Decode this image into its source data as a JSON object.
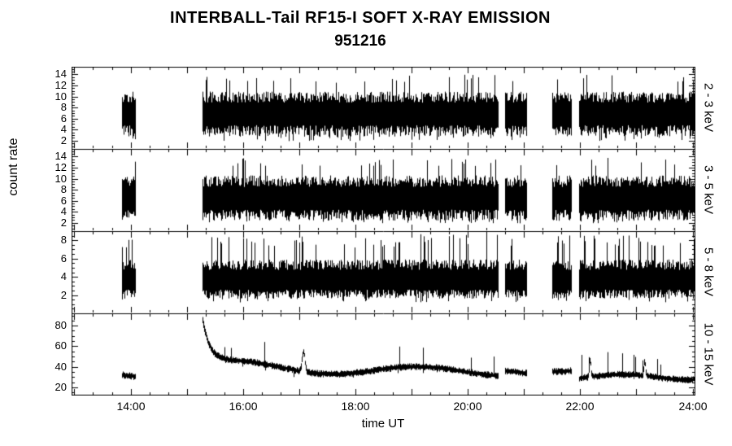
{
  "chart_data": {
    "type": "line",
    "title": "INTERBALL-Tail RF15-I SOFT X-RAY EMISSION",
    "subtitle": "951216",
    "xlabel": "time UT",
    "ylabel": "count rate",
    "line_color": "#000000",
    "background_color": "#ffffff",
    "grid": false,
    "legend": null,
    "x_ticks": [
      "14:00",
      "16:00",
      "18:00",
      "20:00",
      "22:00",
      "24:00"
    ],
    "x_tick_hours": [
      14,
      16,
      18,
      20,
      22,
      24
    ],
    "x_range_hours": [
      12.95,
      24.05
    ],
    "data_segments_hours": [
      [
        13.85,
        14.1
      ],
      [
        15.28,
        20.55
      ],
      [
        20.67,
        21.05
      ],
      [
        21.5,
        21.85
      ],
      [
        21.98,
        24.05
      ]
    ],
    "panels": [
      {
        "label": "2 - 3 keV",
        "ylim": [
          0.5,
          15.4
        ],
        "yticks": [
          2,
          4,
          6,
          8,
          10,
          12,
          14
        ],
        "band": {
          "mean": 6.9,
          "spread_lo": 4.2,
          "spread_hi": 4.0,
          "spike_hi": 14.0,
          "spike_lo": 1.9,
          "spike_prob": 0.07
        }
      },
      {
        "label": "3 - 5 keV",
        "ylim": [
          0.5,
          15.4
        ],
        "yticks": [
          2,
          4,
          6,
          8,
          10,
          12,
          14
        ],
        "band": {
          "mean": 6.4,
          "spread_lo": 4.0,
          "spread_hi": 4.2,
          "spike_hi": 13.8,
          "spike_lo": 1.9,
          "spike_prob": 0.07
        }
      },
      {
        "label": "5 - 8 keV",
        "ylim": [
          0.0,
          9.0
        ],
        "yticks": [
          2,
          4,
          6,
          8
        ],
        "band": {
          "mean": 3.6,
          "spread_lo": 2.0,
          "spread_hi": 2.3,
          "spike_hi": 8.7,
          "spike_lo": 1.2,
          "spike_prob": 0.1
        }
      },
      {
        "label": "10 - 15 keV",
        "ylim": [
          12,
          92
        ],
        "yticks": [
          20,
          40,
          60,
          80
        ],
        "trace": {
          "segment_means": [
            31,
            38,
            34,
            38,
            30
          ],
          "onset_peak": 82,
          "decay_hours": 0.13,
          "wander_amp": 5,
          "thickness": 3.5,
          "spike_prob": 0.05,
          "spike_amp": 20,
          "extra_spikes": [
            {
              "hour": 17.08,
              "amp": 20,
              "width": 0.035
            },
            {
              "hour": 22.18,
              "amp": 17,
              "width": 0.02
            },
            {
              "hour": 23.15,
              "amp": 15,
              "width": 0.02
            }
          ]
        }
      }
    ]
  }
}
